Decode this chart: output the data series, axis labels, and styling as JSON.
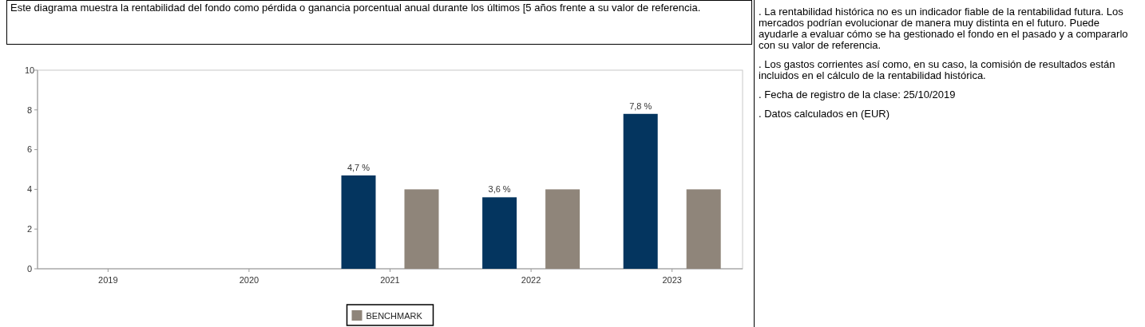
{
  "chart_data": {
    "type": "bar",
    "title": "Este diagrama muestra la rentabilidad del fondo como pérdida o ganancia porcentual anual durante los últimos [5 años frente a su valor de referencia.",
    "categories": [
      "2019",
      "2020",
      "2021",
      "2022",
      "2023"
    ],
    "series": [
      {
        "color": "#04355f",
        "values": [
          null,
          null,
          4.7,
          3.6,
          7.8
        ],
        "value_labels": [
          null,
          null,
          "4,7 %",
          "3,6 %",
          "7,8 %"
        ]
      },
      {
        "name": "BENCHMARK",
        "color": "#8f857a",
        "values": [
          null,
          null,
          4,
          4,
          4
        ]
      }
    ],
    "ylim": [
      0,
      10
    ],
    "yticks": [
      0,
      2,
      4,
      6,
      8,
      10
    ],
    "legend": "bottom",
    "annotations": [
      ". La rentabilidad histórica no es un indicador fiable de la rentabilidad futura. Los mercados podrían evolucionar de manera muy distinta en el futuro. Puede ayudarle a evaluar cómo se ha gestionado el fondo en el pasado y a compararlo con su valor de referencia.",
      ". Los gastos corrientes así como, en su caso, la comisión de resultados están incluidos en el cálculo de la rentabilidad histórica.",
      ". Fecha de registro de la clase: 25/10/2019",
      ". Datos calculados en (EUR)"
    ]
  }
}
